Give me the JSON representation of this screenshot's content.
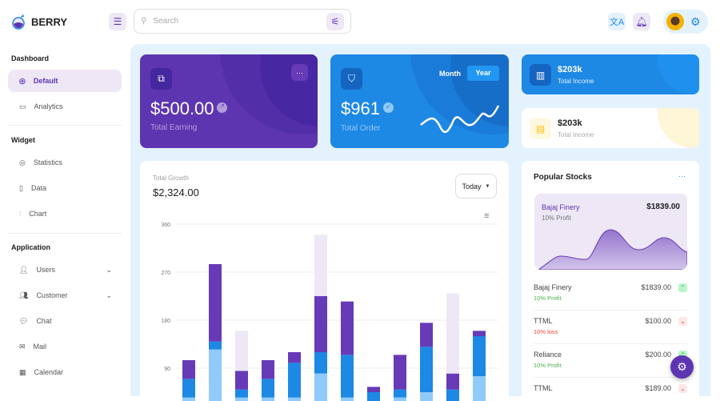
{
  "header": {
    "brand": "BERRY",
    "search_placeholder": "Search"
  },
  "sidebar": {
    "sections": [
      {
        "title": "Dashboard",
        "items": [
          {
            "label": "Default",
            "active": true
          },
          {
            "label": "Analytics"
          }
        ]
      },
      {
        "title": "Widget",
        "items": [
          {
            "label": "Statistics"
          },
          {
            "label": "Data"
          },
          {
            "label": "Chart"
          }
        ]
      },
      {
        "title": "Application",
        "items": [
          {
            "label": "Users",
            "chevron": true
          },
          {
            "label": "Customer",
            "chevron": true
          },
          {
            "label": "Chat"
          },
          {
            "label": "Mail"
          },
          {
            "label": "Calendar"
          }
        ]
      }
    ]
  },
  "earning": {
    "value": "$500.00",
    "label": "Total Earning"
  },
  "order": {
    "value": "$961",
    "label": "Total Order",
    "toggle": [
      "Month",
      "Year"
    ],
    "selected": "Year"
  },
  "income": [
    {
      "value": "$203k",
      "label": "Total Income"
    },
    {
      "value": "$203k",
      "label": "Total Income"
    }
  ],
  "growth": {
    "label": "Total Growth",
    "value": "$2,324.00",
    "period": "Today"
  },
  "chart_data": {
    "type": "bar",
    "stacked": true,
    "y_ticks": [
      90,
      180,
      270,
      360
    ],
    "grid": true,
    "series": [
      {
        "values": [
          35,
          125,
          35,
          35,
          35,
          80,
          35,
          20,
          35,
          45,
          25,
          75
        ],
        "color": "#90caf9"
      },
      {
        "values": [
          35,
          15,
          15,
          35,
          65,
          40,
          80,
          25,
          15,
          85,
          25,
          75
        ],
        "color": "#1e88e5"
      },
      {
        "values": [
          35,
          145,
          35,
          35,
          20,
          105,
          100,
          10,
          65,
          45,
          30,
          10
        ],
        "color": "#673ab7"
      },
      {
        "values": [
          0,
          0,
          75,
          0,
          0,
          115,
          0,
          0,
          0,
          0,
          150,
          0
        ],
        "color": "#ede7f6"
      }
    ]
  },
  "stocks": {
    "title": "Popular Stocks",
    "featured": {
      "name": "Bajaj Finery",
      "note": "10% Profit",
      "price": "$1839.00"
    },
    "items": [
      {
        "name": "Bajaj Finery",
        "note": "10% Profit",
        "price": "$1839.00",
        "up": true
      },
      {
        "name": "TTML",
        "note": "10% loss",
        "price": "$100.00",
        "up": false
      },
      {
        "name": "Reliance",
        "note": "10% Profit",
        "price": "$200.00",
        "up": true
      },
      {
        "name": "TTML",
        "note": "",
        "price": "$189.00",
        "up": false
      }
    ]
  }
}
